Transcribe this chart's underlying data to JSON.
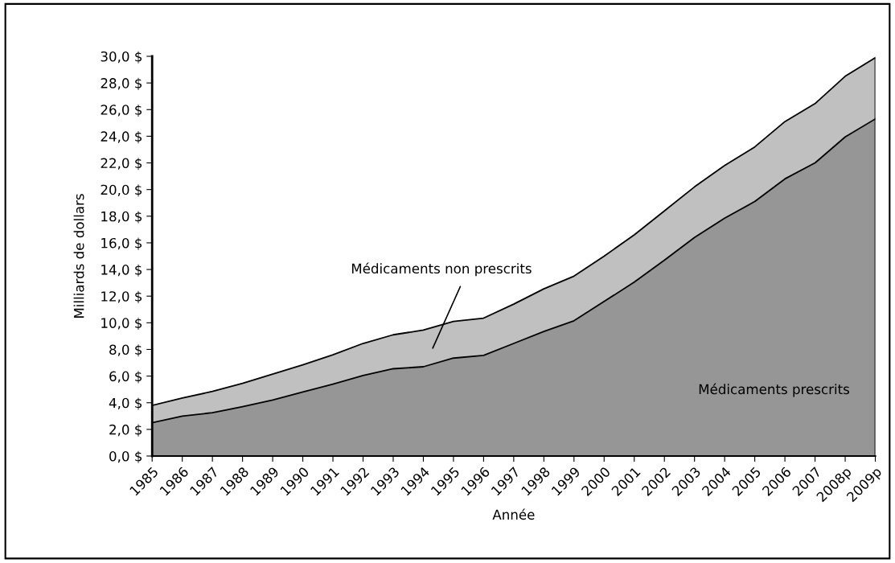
{
  "chart_data": {
    "type": "area",
    "stacked": true,
    "xlabel": "Année",
    "ylabel": "Milliards de dollars",
    "categories": [
      "1985",
      "1986",
      "1987",
      "1988",
      "1989",
      "1990",
      "1991",
      "1992",
      "1993",
      "1994",
      "1995",
      "1996",
      "1997",
      "1998",
      "1999",
      "2000",
      "2001",
      "2002",
      "2003",
      "2004",
      "2005",
      "2006",
      "2007",
      "2008p",
      "2009p"
    ],
    "series": [
      {
        "color": "#969696",
        "values": [
          2.5,
          3.0,
          3.25,
          3.7,
          4.2,
          4.8,
          5.4,
          6.05,
          6.55,
          6.7,
          7.35,
          7.55,
          8.45,
          9.35,
          10.15,
          11.6,
          13.05,
          14.7,
          16.4,
          17.85,
          19.1,
          20.8,
          22.0,
          23.95,
          25.3
        ]
      },
      {
        "color": "#c0c0c0",
        "values": [
          1.3,
          1.35,
          1.6,
          1.75,
          1.95,
          2.05,
          2.2,
          2.4,
          2.55,
          2.75,
          2.75,
          2.8,
          2.95,
          3.2,
          3.35,
          3.4,
          3.55,
          3.7,
          3.8,
          3.95,
          4.1,
          4.3,
          4.45,
          4.55,
          4.6
        ]
      }
    ],
    "ylim": [
      0,
      30
    ],
    "yticks": [
      {
        "value": 0,
        "label": "0,0 $"
      },
      {
        "value": 2,
        "label": "2,0 $"
      },
      {
        "value": 4,
        "label": "4,0 $"
      },
      {
        "value": 6,
        "label": "6,0 $"
      },
      {
        "value": 8,
        "label": "8,0 $"
      },
      {
        "value": 10,
        "label": "10,0 $"
      },
      {
        "value": 12,
        "label": "12,0 $"
      },
      {
        "value": 14,
        "label": "14,0 $"
      },
      {
        "value": 16,
        "label": "16,0 $"
      },
      {
        "value": 18,
        "label": "18,0 $"
      },
      {
        "value": 20,
        "label": "20,0 $"
      },
      {
        "value": 22,
        "label": "22,0 $"
      },
      {
        "value": 24,
        "label": "24,0 $"
      },
      {
        "value": 26,
        "label": "26,0 $"
      },
      {
        "value": 28,
        "label": "28,0 $"
      },
      {
        "value": 30,
        "label": "30,0 $"
      }
    ],
    "annotations": [
      "Médicaments non prescrits",
      "Médicaments prescrits"
    ],
    "grid": false,
    "legend": false
  }
}
